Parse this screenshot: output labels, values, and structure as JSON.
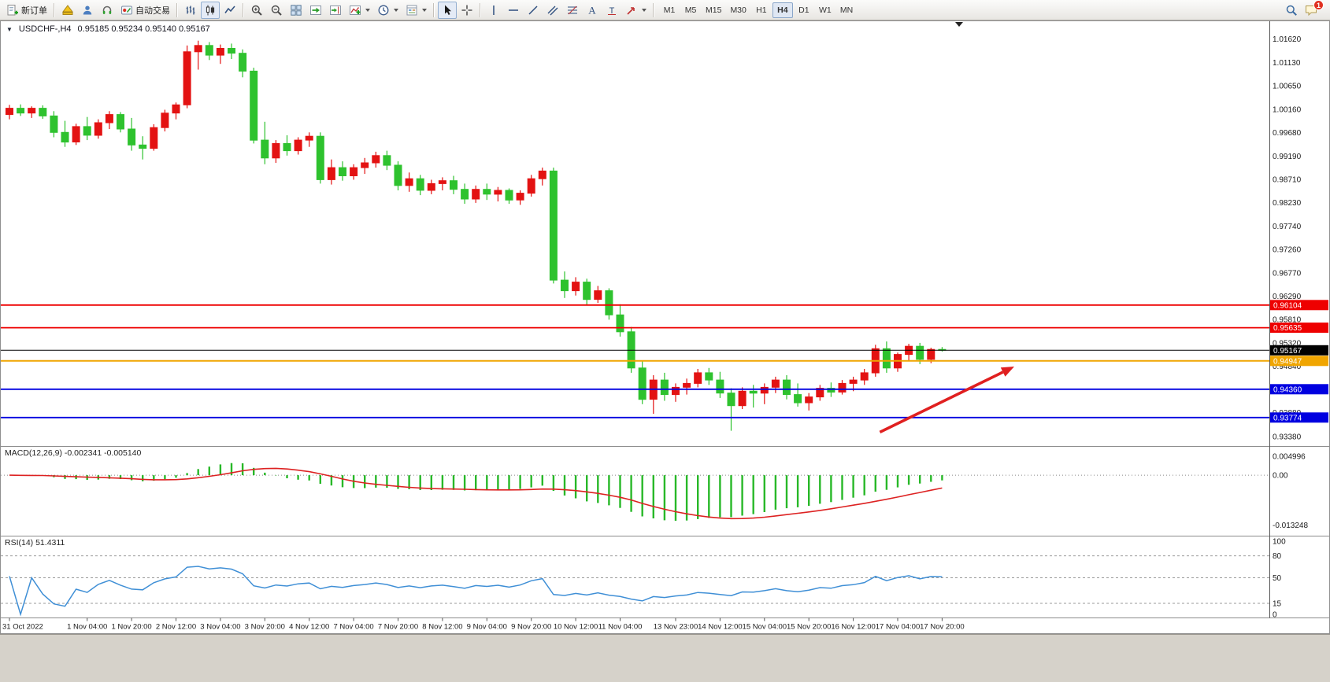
{
  "toolbar": {
    "new_order_label": "新订单",
    "autotrading_label": "自动交易",
    "notification_badge": "1",
    "timeframes": [
      {
        "label": "M1",
        "active": false
      },
      {
        "label": "M5",
        "active": false
      },
      {
        "label": "M15",
        "active": false
      },
      {
        "label": "M30",
        "active": false
      },
      {
        "label": "H1",
        "active": false
      },
      {
        "label": "H4",
        "active": true
      },
      {
        "label": "D1",
        "active": false
      },
      {
        "label": "W1",
        "active": false
      },
      {
        "label": "MN",
        "active": false
      }
    ],
    "icons": [
      "new-order-icon",
      "metaeditor-icon",
      "profile-icon",
      "support-icon",
      "autotrading-icon",
      "bar-chart-icon",
      "candlestick-chart-icon",
      "line-chart-icon",
      "zoom-in-icon",
      "zoom-out-icon",
      "tile-windows-icon",
      "auto-scroll-icon",
      "chart-shift-icon",
      "indicators-icon",
      "periods-icon",
      "templates-icon",
      "cursor-icon",
      "crosshair-icon",
      "vline-icon",
      "hline-icon",
      "trendline-icon",
      "channel-icon",
      "fibonacci-icon",
      "text-icon",
      "label-icon",
      "arrows-icon",
      "search-icon",
      "notification-icon"
    ]
  },
  "chart": {
    "symbol_title": "USDCHF-,H4",
    "ohlc_text": "0.95185  0.95234  0.95140  0.95167"
  },
  "colors": {
    "bull": "#e31212",
    "bear": "#2ec22e",
    "axis_text": "#1a1a1a",
    "pane_border": "#8c8c8c"
  },
  "chart_data": {
    "type": "candlestick",
    "symbol": "USDCHF-",
    "period": "H4",
    "last_ohlc": {
      "open": "0.95185",
      "high": "0.95234",
      "low": "0.95140",
      "close": "0.95167"
    },
    "price_range": {
      "top": 1.0195,
      "bottom": 0.932
    },
    "price_axis_labels": [
      "1.01620",
      "1.01130",
      "1.00650",
      "1.00160",
      "0.99680",
      "0.99190",
      "0.98710",
      "0.98230",
      "0.97740",
      "0.97260",
      "0.96770",
      "0.96290",
      "0.95810",
      "0.95320",
      "0.94840",
      "0.94360",
      "0.93880",
      "0.93380"
    ],
    "candles": [
      [
        1.0005,
        1.0025,
        0.9995,
        1.0018
      ],
      [
        1.0018,
        1.0026,
        1.0002,
        1.0008
      ],
      [
        1.0008,
        1.0022,
        0.9998,
        1.0018
      ],
      [
        1.0018,
        1.0024,
        0.9996,
        1.0002
      ],
      [
        1.0002,
        1.0012,
        0.9958,
        0.9968
      ],
      [
        0.9968,
        0.9992,
        0.9938,
        0.9948
      ],
      [
        0.9948,
        0.9986,
        0.9942,
        0.998
      ],
      [
        0.998,
        1.0,
        0.9952,
        0.9962
      ],
      [
        0.9962,
        0.9995,
        0.9955,
        0.9988
      ],
      [
        0.9988,
        1.0012,
        0.9975,
        1.0005
      ],
      [
        1.0005,
        1.001,
        0.9968,
        0.9975
      ],
      [
        0.9975,
        0.9998,
        0.993,
        0.9942
      ],
      [
        0.9942,
        0.996,
        0.9912,
        0.9935
      ],
      [
        0.9935,
        0.9985,
        0.993,
        0.9978
      ],
      [
        0.9978,
        1.0015,
        0.997,
        1.0008
      ],
      [
        1.0008,
        1.003,
        0.9995,
        1.0025
      ],
      [
        1.0025,
        1.0148,
        1.0018,
        1.0135
      ],
      [
        1.0135,
        1.0158,
        1.0098,
        1.0148
      ],
      [
        1.0148,
        1.0155,
        1.0118,
        1.0128
      ],
      [
        1.0128,
        1.015,
        1.011,
        1.0142
      ],
      [
        1.0142,
        1.0152,
        1.012,
        1.0132
      ],
      [
        1.0132,
        1.014,
        1.0082,
        1.0095
      ],
      [
        1.0095,
        1.0102,
        0.9945,
        0.9952
      ],
      [
        0.9952,
        0.999,
        0.9902,
        0.9915
      ],
      [
        0.9915,
        0.9952,
        0.9905,
        0.9945
      ],
      [
        0.9945,
        0.9962,
        0.992,
        0.993
      ],
      [
        0.993,
        0.9958,
        0.9922,
        0.9952
      ],
      [
        0.9952,
        0.9968,
        0.9938,
        0.996
      ],
      [
        0.996,
        0.9968,
        0.9862,
        0.987
      ],
      [
        0.987,
        0.9912,
        0.986,
        0.9895
      ],
      [
        0.9895,
        0.9908,
        0.9868,
        0.9878
      ],
      [
        0.9878,
        0.9902,
        0.987,
        0.9895
      ],
      [
        0.9895,
        0.9915,
        0.9882,
        0.9905
      ],
      [
        0.9905,
        0.9928,
        0.9895,
        0.992
      ],
      [
        0.992,
        0.993,
        0.989,
        0.99
      ],
      [
        0.99,
        0.9908,
        0.9848,
        0.9858
      ],
      [
        0.9858,
        0.9885,
        0.9845,
        0.9872
      ],
      [
        0.9872,
        0.988,
        0.9838,
        0.9848
      ],
      [
        0.9848,
        0.987,
        0.984,
        0.9862
      ],
      [
        0.9862,
        0.9875,
        0.9848,
        0.9868
      ],
      [
        0.9868,
        0.9878,
        0.984,
        0.985
      ],
      [
        0.985,
        0.9862,
        0.982,
        0.983
      ],
      [
        0.983,
        0.9858,
        0.9822,
        0.985
      ],
      [
        0.985,
        0.9862,
        0.9828,
        0.984
      ],
      [
        0.984,
        0.9855,
        0.9825,
        0.9848
      ],
      [
        0.9848,
        0.9852,
        0.982,
        0.9828
      ],
      [
        0.9828,
        0.9848,
        0.9818,
        0.9842
      ],
      [
        0.9842,
        0.988,
        0.9835,
        0.9872
      ],
      [
        0.9872,
        0.9895,
        0.9858,
        0.9888
      ],
      [
        0.9888,
        0.9895,
        0.9655,
        0.9662
      ],
      [
        0.9662,
        0.968,
        0.9625,
        0.964
      ],
      [
        0.964,
        0.9668,
        0.963,
        0.9658
      ],
      [
        0.9658,
        0.9665,
        0.961,
        0.9622
      ],
      [
        0.9622,
        0.965,
        0.9615,
        0.964
      ],
      [
        0.964,
        0.9645,
        0.958,
        0.959
      ],
      [
        0.959,
        0.9612,
        0.9545,
        0.9555
      ],
      [
        0.9555,
        0.9565,
        0.947,
        0.948
      ],
      [
        0.948,
        0.9495,
        0.9405,
        0.9415
      ],
      [
        0.9415,
        0.9465,
        0.9385,
        0.9455
      ],
      [
        0.9455,
        0.947,
        0.9412,
        0.9425
      ],
      [
        0.9425,
        0.9448,
        0.941,
        0.944
      ],
      [
        0.944,
        0.9458,
        0.9425,
        0.9448
      ],
      [
        0.9448,
        0.9478,
        0.944,
        0.947
      ],
      [
        0.947,
        0.948,
        0.9445,
        0.9455
      ],
      [
        0.9455,
        0.9472,
        0.9418,
        0.9428
      ],
      [
        0.9428,
        0.9438,
        0.935,
        0.9402
      ],
      [
        0.9402,
        0.944,
        0.9395,
        0.9432
      ],
      [
        0.9432,
        0.9445,
        0.9398,
        0.9428
      ],
      [
        0.9428,
        0.9448,
        0.9405,
        0.944
      ],
      [
        0.944,
        0.9462,
        0.9428,
        0.9455
      ],
      [
        0.9455,
        0.9465,
        0.9415,
        0.9425
      ],
      [
        0.9425,
        0.9448,
        0.94,
        0.9408
      ],
      [
        0.9408,
        0.9428,
        0.9392,
        0.942
      ],
      [
        0.942,
        0.9445,
        0.9412,
        0.9438
      ],
      [
        0.9438,
        0.945,
        0.942,
        0.943
      ],
      [
        0.943,
        0.9455,
        0.9425,
        0.9448
      ],
      [
        0.9448,
        0.9462,
        0.9432,
        0.9455
      ],
      [
        0.9455,
        0.9478,
        0.9445,
        0.947
      ],
      [
        0.947,
        0.9528,
        0.9462,
        0.952
      ],
      [
        0.952,
        0.9535,
        0.947,
        0.948
      ],
      [
        0.948,
        0.9512,
        0.9472,
        0.9508
      ],
      [
        0.9508,
        0.953,
        0.9495,
        0.9525
      ],
      [
        0.9525,
        0.9532,
        0.9488,
        0.9498
      ],
      [
        0.9498,
        0.9522,
        0.949,
        0.95185
      ],
      [
        0.95185,
        0.95234,
        0.9514,
        0.95167
      ]
    ],
    "time_labels": [
      {
        "bar": 0,
        "text": "31 Oct 2022"
      },
      {
        "bar": 7,
        "text": "1 Nov 04:00"
      },
      {
        "bar": 11,
        "text": "1 Nov 20:00"
      },
      {
        "bar": 15,
        "text": "2 Nov 12:00"
      },
      {
        "bar": 19,
        "text": "3 Nov 04:00"
      },
      {
        "bar": 23,
        "text": "3 Nov 20:00"
      },
      {
        "bar": 27,
        "text": "4 Nov 12:00"
      },
      {
        "bar": 31,
        "text": "7 Nov 04:00"
      },
      {
        "bar": 35,
        "text": "7 Nov 20:00"
      },
      {
        "bar": 39,
        "text": "8 Nov 12:00"
      },
      {
        "bar": 43,
        "text": "9 Nov 04:00"
      },
      {
        "bar": 47,
        "text": "9 Nov 20:00"
      },
      {
        "bar": 51,
        "text": "10 Nov 12:00"
      },
      {
        "bar": 55,
        "text": "11 Nov 04:00"
      },
      {
        "bar": 60,
        "text": "13 Nov 23:00"
      },
      {
        "bar": 64,
        "text": "14 Nov 12:00"
      },
      {
        "bar": 68,
        "text": "15 Nov 04:00"
      },
      {
        "bar": 72,
        "text": "15 Nov 20:00"
      },
      {
        "bar": 76,
        "text": "16 Nov 12:00"
      },
      {
        "bar": 80,
        "text": "17 Nov 04:00"
      },
      {
        "bar": 84,
        "text": "17 Nov 20:00"
      }
    ],
    "hlines": [
      {
        "price": 0.96104,
        "label": "0.96104",
        "color": "#ee0000",
        "width": 1.8
      },
      {
        "price": 0.95635,
        "label": "0.95635",
        "color": "#ee0000",
        "width": 1.8
      },
      {
        "price": 0.95167,
        "label": "0.95167",
        "color": "#000000",
        "width": 1
      },
      {
        "price": 0.94947,
        "label": "0.94947",
        "color": "#f0a500",
        "width": 2
      },
      {
        "price": 0.9436,
        "label": "0.94360",
        "color": "#0000e0",
        "width": 1.8
      },
      {
        "price": 0.93774,
        "label": "0.93774",
        "color": "#0000e0",
        "width": 1.8
      }
    ],
    "trend_arrow": {
      "from": {
        "bar": 78.4,
        "price": 0.9347
      },
      "to": {
        "bar": 90.5,
        "price": 0.9483
      },
      "color": "#e02020"
    },
    "macd": {
      "header": "MACD(12,26,9) -0.002341 -0.005140",
      "fast": 12,
      "slow": 26,
      "signal": 9,
      "main_value": -0.002341,
      "signal_value": -0.00514,
      "scale_labels": [
        {
          "text": "0.004996",
          "value": 0.004996
        },
        {
          "text": "0.00",
          "value": 0
        },
        {
          "text": "-0.013248",
          "value": -0.013248
        }
      ],
      "range": {
        "max": 0.0065,
        "min": -0.015
      },
      "histogram_color": "#28b828",
      "signal_color": "#dd2222"
    },
    "rsi": {
      "header": "RSI(14) 51.4311",
      "rsi_period": 14,
      "value": 51.4311,
      "scale_labels": [
        {
          "text": "100",
          "value": 100
        },
        {
          "text": "80",
          "value": 80
        },
        {
          "text": "50",
          "value": 50
        },
        {
          "text": "15",
          "value": 15
        },
        {
          "text": "0",
          "value": 0
        }
      ],
      "levels": [
        80,
        50,
        15
      ],
      "line_color": "#3f8fd6"
    }
  }
}
